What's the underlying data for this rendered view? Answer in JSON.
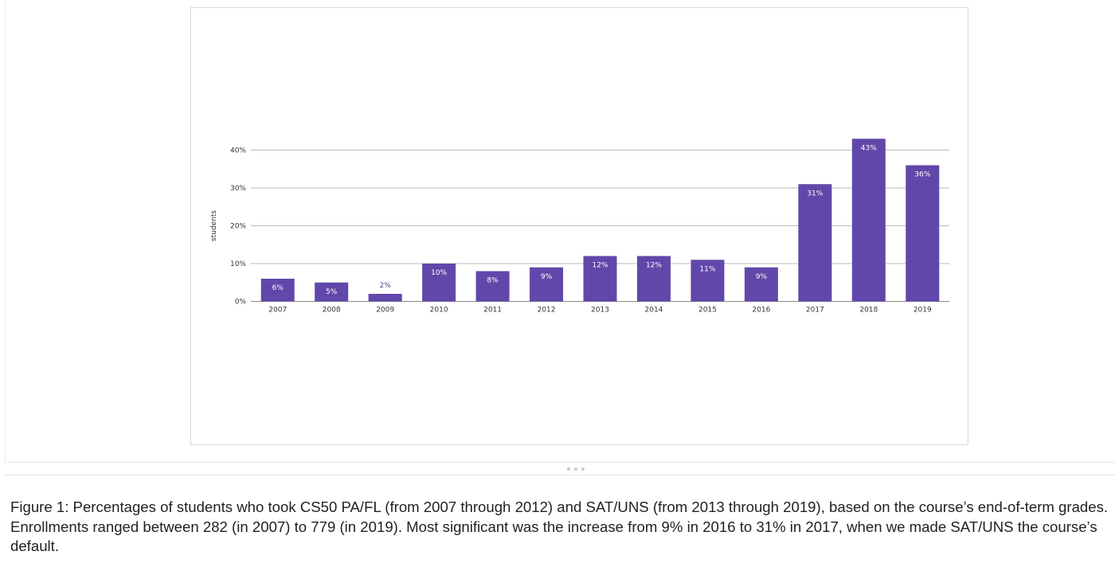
{
  "chart_data": {
    "type": "bar",
    "title": "",
    "xlabel": "",
    "ylabel": "students",
    "ylim": [
      0,
      40
    ],
    "y_ticks": [
      "0%",
      "10%",
      "20%",
      "30%",
      "40%"
    ],
    "y_tick_values": [
      0,
      10,
      20,
      30,
      40
    ],
    "grid": true,
    "categories": [
      "2007",
      "2008",
      "2009",
      "2010",
      "2011",
      "2012",
      "2013",
      "2014",
      "2015",
      "2016",
      "2017",
      "2018",
      "2019"
    ],
    "values": [
      6,
      5,
      2,
      10,
      8,
      9,
      12,
      12,
      11,
      9,
      31,
      43,
      36
    ],
    "labels": [
      "6%",
      "5%",
      "2%",
      "10%",
      "8%",
      "9%",
      "12%",
      "12%",
      "11%",
      "9%",
      "31%",
      "43%",
      "36%"
    ],
    "colors": {
      "bar": "#6247aa",
      "label_inside": "#ffffff",
      "label_outside": "#4a3a8a",
      "grid": "#bdbdbd",
      "axis": "#888888"
    }
  },
  "caption": {
    "text": "Figure 1: Percentages of students who took CS50 PA/FL (from 2007 through 2012) and SAT/UNS (from 2013 through 2019), based on the course’s end-of-term grades. Enrollments ranged between 282 (in 2007) to 779 (in 2019). Most significant was the increase from 9% in 2016 to 31% in 2017, when we made SAT/UNS the course’s default."
  }
}
